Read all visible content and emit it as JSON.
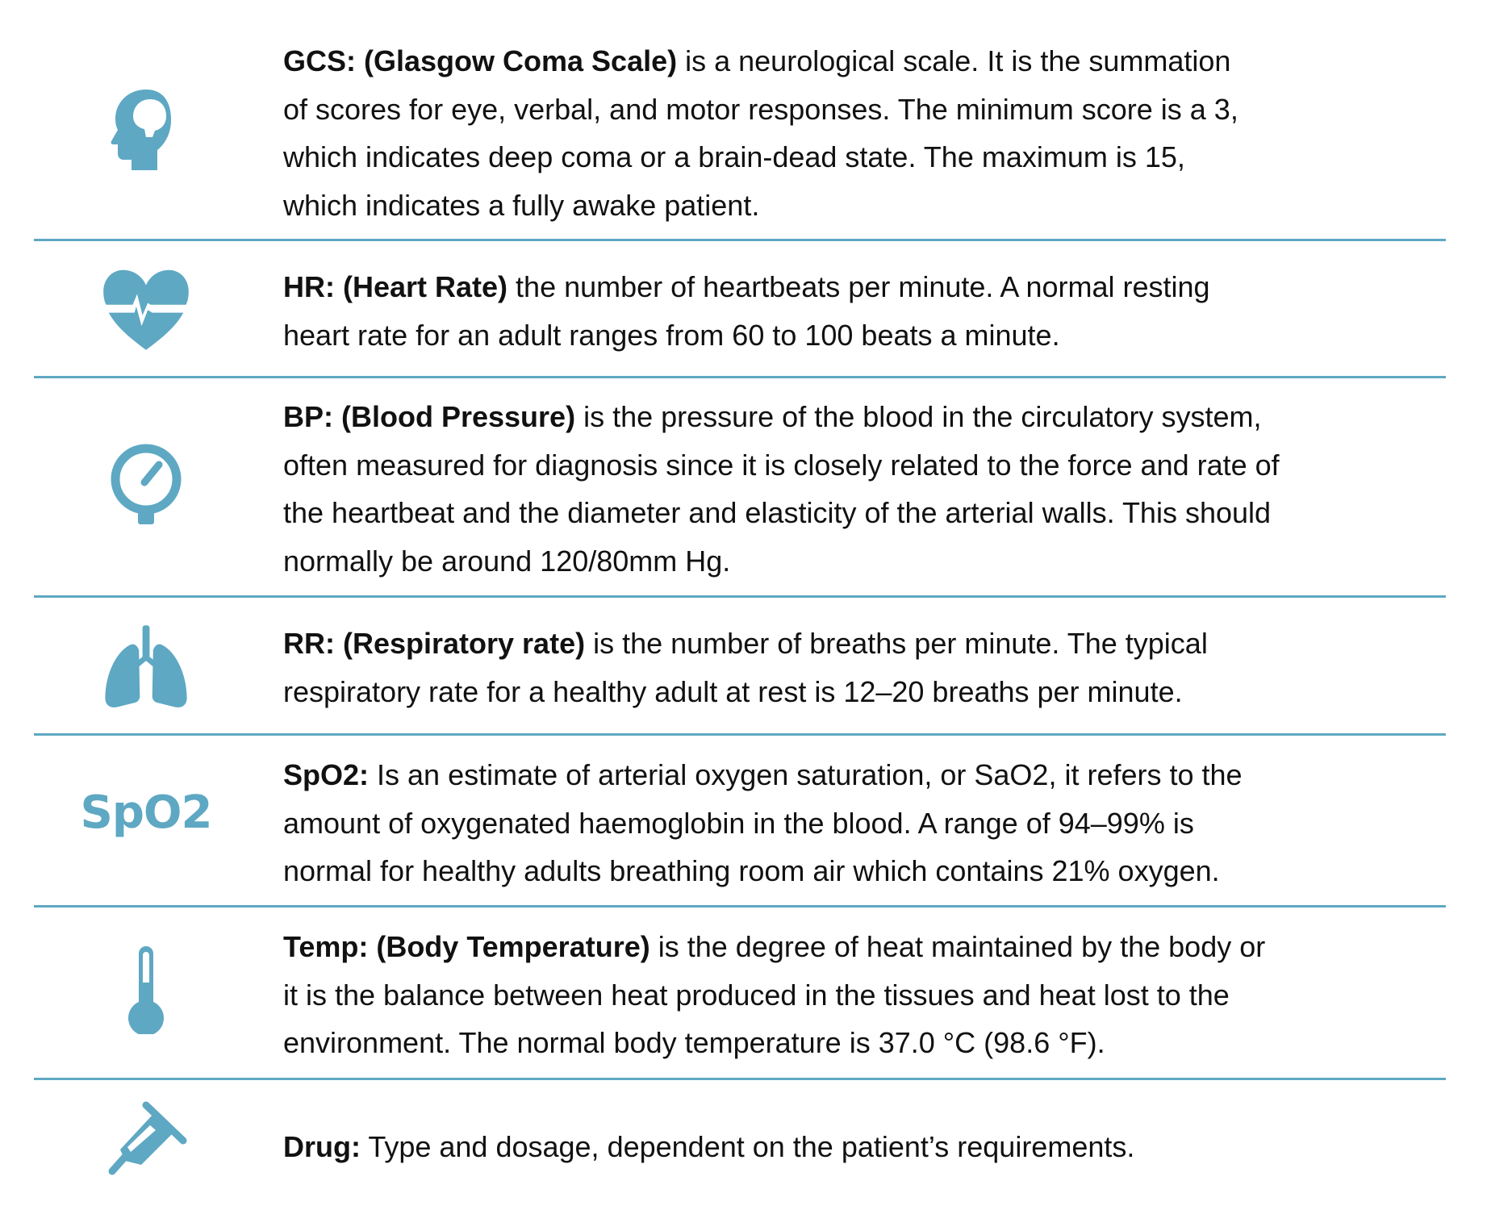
{
  "colors": {
    "accent": "#5ea8c3",
    "text": "#111111"
  },
  "rows": [
    {
      "icon": "head-brain-icon",
      "term": "GCS: (Glasgow Coma Scale)",
      "lines": [
        " is a neurological scale. It is the summation",
        "of scores for eye, verbal, and motor responses. The minimum score is a 3,",
        "which indicates deep coma or a brain-dead state. The maximum is 15,",
        "which indicates a fully awake patient."
      ]
    },
    {
      "icon": "heart-pulse-icon",
      "term": "HR: (Heart Rate)",
      "lines": [
        " the number of heartbeats per minute. A normal resting",
        "heart rate for an adult ranges from 60 to 100 beats a minute."
      ]
    },
    {
      "icon": "pressure-gauge-icon",
      "term": "BP: (Blood Pressure)",
      "lines": [
        " is the pressure of the blood in the circulatory system,",
        "often measured for diagnosis since it is closely related to the force and rate of",
        "the heartbeat and the diameter and elasticity of the arterial walls. This should",
        "normally be around 120/80mm Hg."
      ]
    },
    {
      "icon": "lungs-icon",
      "term": "RR: (Respiratory rate)",
      "lines": [
        " is the number of breaths per minute. The typical",
        "respiratory rate for a healthy adult at rest is 12–20 breaths per minute."
      ]
    },
    {
      "icon": "spo2-text-icon",
      "icon_text": "SpO2",
      "term": "SpO2:",
      "lines": [
        " Is an estimate of arterial oxygen saturation, or SaO2, it refers to the",
        "amount of oxygenated haemoglobin in the blood. A range of 94–99% is",
        "normal for healthy adults breathing room air which contains 21% oxygen."
      ]
    },
    {
      "icon": "thermometer-icon",
      "term": "Temp: (Body Temperature)",
      "lines": [
        " is the degree of heat maintained by the body or",
        "it is the balance between heat produced in the tissues and heat lost to the",
        "environment. The normal body temperature is 37.0 °C (98.6 °F)."
      ]
    },
    {
      "icon": "syringe-icon",
      "term": "Drug:",
      "lines": [
        " Type and dosage, dependent on the patient’s requirements."
      ]
    }
  ]
}
